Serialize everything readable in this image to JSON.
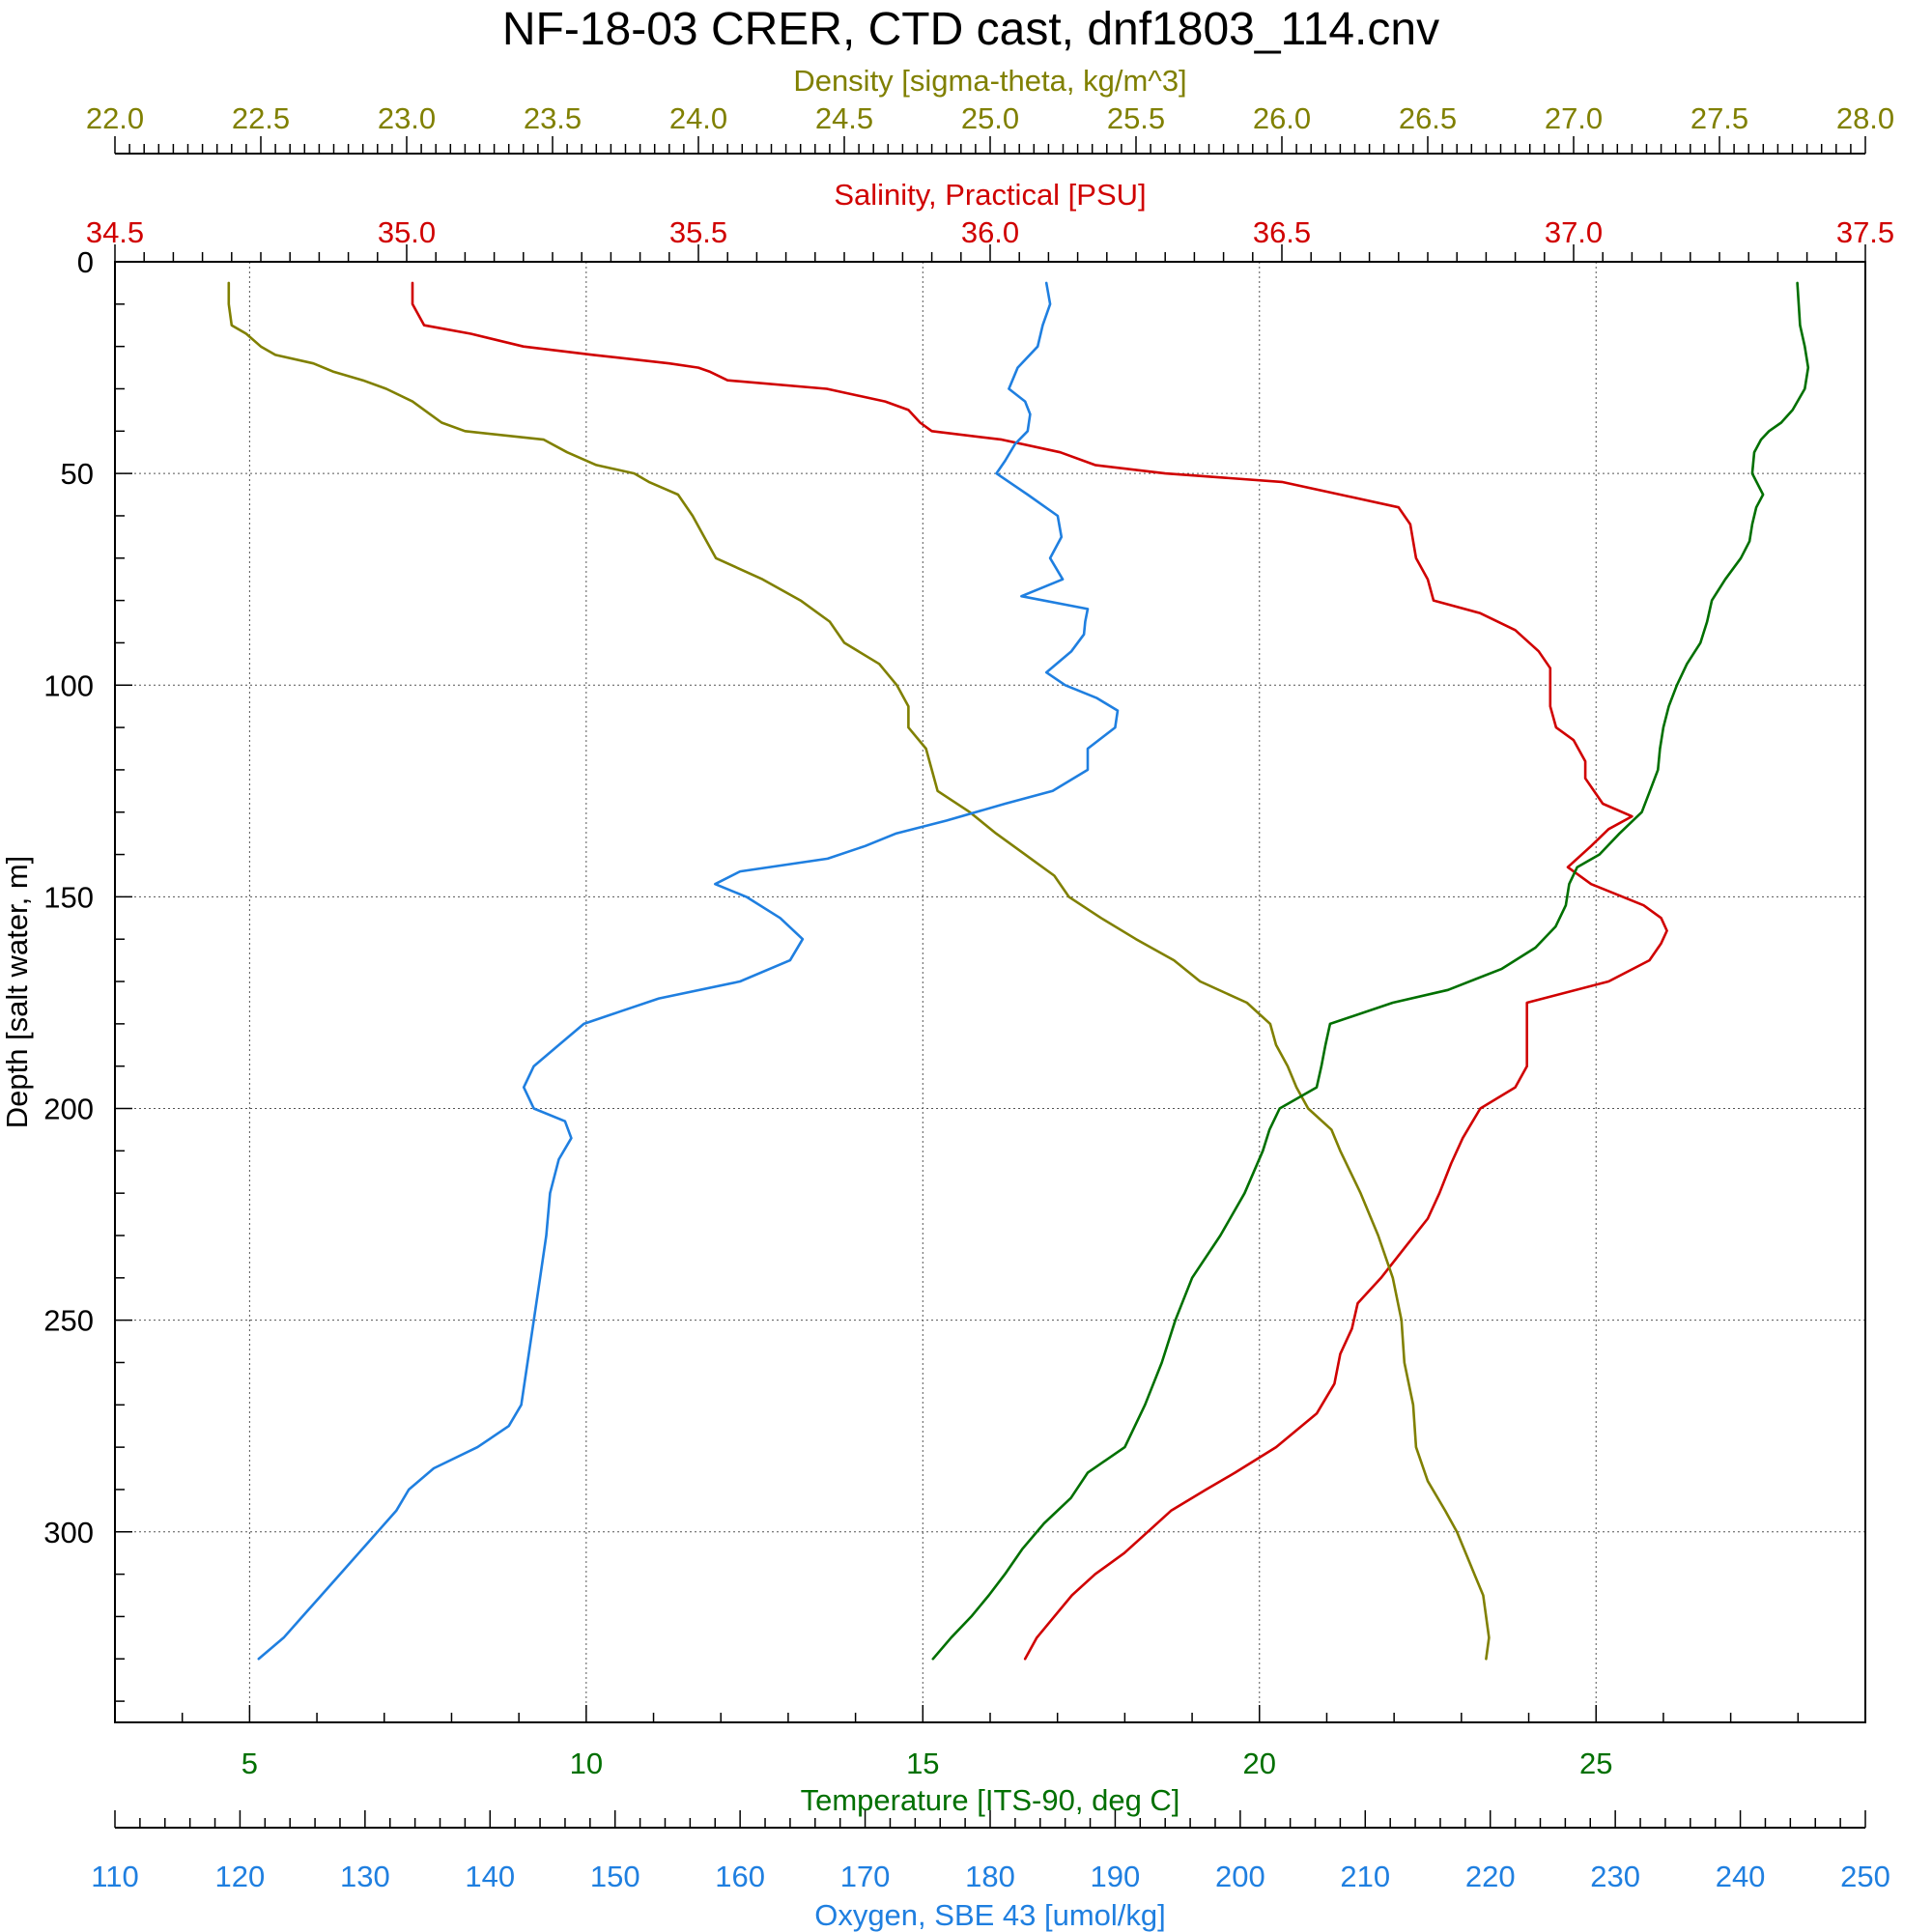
{
  "chart_data": {
    "type": "line",
    "title": "NF-18-03 CRER, CTD cast, dnf1803_114.cnv",
    "grid": true,
    "y_axis": {
      "label": "Depth [salt water, m]",
      "range": [
        0,
        345
      ],
      "inverted": true,
      "ticks": [
        0,
        50,
        100,
        150,
        200,
        250,
        300
      ],
      "tick_labels": [
        "0",
        "50",
        "100",
        "150",
        "200",
        "250",
        "300"
      ]
    },
    "x_axes": {
      "density": {
        "label": "Density [sigma-theta, kg/m^3]",
        "position": "top-outer",
        "color": "#808000",
        "range": [
          22.0,
          28.0
        ],
        "ticks": [
          22.0,
          22.5,
          23.0,
          23.5,
          24.0,
          24.5,
          25.0,
          25.5,
          26.0,
          26.5,
          27.0,
          27.5,
          28.0
        ],
        "tick_labels": [
          "22.0",
          "22.5",
          "23.0",
          "23.5",
          "24.0",
          "24.5",
          "25.0",
          "25.5",
          "26.0",
          "26.5",
          "27.0",
          "27.5",
          "28.0"
        ]
      },
      "salinity": {
        "label": "Salinity, Practical [PSU]",
        "position": "top-inner",
        "color": "#d00000",
        "range": [
          34.5,
          37.5
        ],
        "ticks": [
          34.5,
          35.0,
          35.5,
          36.0,
          36.5,
          37.0,
          37.5
        ],
        "tick_labels": [
          "34.5",
          "35.0",
          "35.5",
          "36.0",
          "36.5",
          "37.0",
          "37.5"
        ]
      },
      "temperature": {
        "label": "Temperature [ITS-90, deg C]",
        "position": "bottom-inner",
        "color": "#007000",
        "range": [
          3.0,
          29.0
        ],
        "ticks": [
          5,
          10,
          15,
          20,
          25
        ],
        "tick_labels": [
          "5",
          "10",
          "15",
          "20",
          "25"
        ]
      },
      "oxygen": {
        "label": "Oxygen, SBE 43 [umol/kg]",
        "position": "bottom-outer",
        "color": "#1f7fe0",
        "range": [
          110,
          250
        ],
        "ticks": [
          110,
          120,
          130,
          140,
          150,
          160,
          170,
          180,
          190,
          200,
          210,
          220,
          230,
          240,
          250
        ],
        "tick_labels": [
          "110",
          "120",
          "130",
          "140",
          "150",
          "160",
          "170",
          "180",
          "190",
          "200",
          "210",
          "220",
          "230",
          "240",
          "250"
        ]
      }
    },
    "series": [
      {
        "axis": "salinity",
        "color": "#d00000",
        "depth": [
          5,
          10,
          15,
          17,
          20,
          22,
          24,
          25,
          26,
          28,
          30,
          33,
          35,
          38,
          40,
          42,
          45,
          48,
          50,
          52,
          55,
          58,
          62,
          70,
          75,
          80,
          83,
          87,
          92,
          96,
          100,
          105,
          110,
          113,
          118,
          122,
          128,
          131,
          134,
          138,
          143,
          147,
          152,
          155,
          158,
          161,
          165,
          170,
          175,
          180,
          185,
          190,
          195,
          200,
          207,
          213,
          220,
          226,
          233,
          240,
          246,
          252,
          258,
          265,
          272,
          280,
          286,
          290,
          295,
          300,
          305,
          310,
          315,
          320,
          325,
          330
        ],
        "values": [
          35.01,
          35.01,
          35.03,
          35.11,
          35.2,
          35.32,
          35.45,
          35.5,
          35.52,
          35.55,
          35.72,
          35.82,
          35.86,
          35.88,
          35.9,
          36.02,
          36.12,
          36.18,
          36.3,
          36.5,
          36.6,
          36.7,
          36.72,
          36.73,
          36.75,
          36.76,
          36.84,
          36.9,
          36.94,
          36.96,
          36.96,
          36.96,
          36.97,
          37.0,
          37.02,
          37.02,
          37.05,
          37.1,
          37.06,
          37.03,
          36.99,
          37.03,
          37.12,
          37.15,
          37.16,
          37.15,
          37.13,
          37.06,
          36.92,
          36.92,
          36.92,
          36.92,
          36.9,
          36.84,
          36.81,
          36.79,
          36.77,
          36.75,
          36.71,
          36.67,
          36.63,
          36.62,
          36.6,
          36.59,
          36.56,
          36.49,
          36.42,
          36.37,
          36.31,
          36.27,
          36.23,
          36.18,
          36.14,
          36.11,
          36.08,
          36.06
        ]
      },
      {
        "axis": "density",
        "color": "#808000",
        "depth": [
          5,
          10,
          15,
          17,
          20,
          22,
          24,
          26,
          28,
          30,
          33,
          36,
          38,
          40,
          42,
          45,
          48,
          50,
          52,
          55,
          60,
          65,
          70,
          75,
          80,
          85,
          90,
          95,
          100,
          105,
          110,
          115,
          120,
          125,
          130,
          135,
          140,
          145,
          150,
          155,
          160,
          165,
          170,
          175,
          180,
          185,
          190,
          195,
          200,
          205,
          210,
          220,
          230,
          240,
          250,
          260,
          270,
          280,
          288,
          295,
          300,
          305,
          310,
          315,
          320,
          325,
          330
        ],
        "values": [
          22.39,
          22.39,
          22.4,
          22.45,
          22.5,
          22.55,
          22.68,
          22.75,
          22.85,
          22.93,
          23.02,
          23.08,
          23.12,
          23.2,
          23.47,
          23.55,
          23.65,
          23.78,
          23.83,
          23.93,
          23.98,
          24.02,
          24.06,
          24.22,
          24.35,
          24.45,
          24.5,
          24.62,
          24.68,
          24.72,
          24.72,
          24.78,
          24.8,
          24.82,
          24.93,
          25.02,
          25.12,
          25.22,
          25.27,
          25.38,
          25.5,
          25.63,
          25.72,
          25.88,
          25.96,
          25.98,
          26.02,
          26.05,
          26.09,
          26.17,
          26.2,
          26.27,
          26.33,
          26.38,
          26.41,
          26.42,
          26.45,
          26.46,
          26.5,
          26.56,
          26.6,
          26.63,
          26.66,
          26.69,
          26.7,
          26.71,
          26.7
        ]
      },
      {
        "axis": "temperature",
        "color": "#007000",
        "depth": [
          5,
          10,
          15,
          20,
          25,
          30,
          35,
          38,
          40,
          42,
          45,
          50,
          55,
          58,
          62,
          66,
          70,
          75,
          80,
          85,
          90,
          95,
          100,
          105,
          110,
          115,
          120,
          125,
          130,
          135,
          140,
          143,
          147,
          152,
          157,
          162,
          167,
          172,
          175,
          180,
          185,
          190,
          195,
          200,
          205,
          210,
          220,
          230,
          240,
          250,
          260,
          270,
          280,
          286,
          292,
          298,
          304,
          310,
          315,
          320,
          325,
          330
        ],
        "values": [
          27.99,
          28.01,
          28.03,
          28.1,
          28.15,
          28.1,
          27.92,
          27.75,
          27.57,
          27.45,
          27.35,
          27.32,
          27.48,
          27.38,
          27.32,
          27.28,
          27.15,
          26.92,
          26.72,
          26.65,
          26.55,
          26.35,
          26.2,
          26.08,
          26.0,
          25.95,
          25.92,
          25.8,
          25.68,
          25.35,
          25.05,
          24.72,
          24.6,
          24.55,
          24.4,
          24.1,
          23.6,
          22.8,
          21.98,
          21.05,
          20.98,
          20.92,
          20.85,
          20.3,
          20.15,
          20.05,
          19.78,
          19.42,
          19.0,
          18.75,
          18.55,
          18.3,
          18.0,
          17.45,
          17.2,
          16.8,
          16.48,
          16.22,
          15.98,
          15.72,
          15.42,
          15.15
        ]
      },
      {
        "axis": "oxygen",
        "color": "#1f7fe0",
        "depth": [
          5,
          10,
          15,
          20,
          25,
          30,
          33,
          36,
          40,
          43,
          47,
          50,
          55,
          60,
          65,
          70,
          75,
          79,
          82,
          85,
          88,
          92,
          97,
          100,
          103,
          106,
          110,
          115,
          120,
          125,
          128,
          132,
          135,
          138,
          141,
          144,
          147,
          150,
          155,
          160,
          165,
          170,
          174,
          177,
          180,
          185,
          190,
          195,
          200,
          203,
          207,
          212,
          220,
          230,
          240,
          250,
          260,
          270,
          275,
          280,
          285,
          290,
          295,
          300,
          305,
          310,
          315,
          320,
          325,
          330
        ],
        "values": [
          184.5,
          184.8,
          184.2,
          183.8,
          182.2,
          181.5,
          182.8,
          183.2,
          183.0,
          182.0,
          181.2,
          180.5,
          183.0,
          185.4,
          185.7,
          184.8,
          185.8,
          182.5,
          187.8,
          187.6,
          187.5,
          186.5,
          184.5,
          186.0,
          188.5,
          190.2,
          190.0,
          187.8,
          187.8,
          185.0,
          181.2,
          176.5,
          172.5,
          170.0,
          167.0,
          160.0,
          158.0,
          160.5,
          163.2,
          165.0,
          164.0,
          160.0,
          153.5,
          150.5,
          147.5,
          145.5,
          143.5,
          142.7,
          143.5,
          146.0,
          146.5,
          145.5,
          144.8,
          144.5,
          144.0,
          143.5,
          143.0,
          142.5,
          141.5,
          139.0,
          135.5,
          133.5,
          132.5,
          131.0,
          129.5,
          128.0,
          126.5,
          125.0,
          123.5,
          121.5
        ]
      }
    ]
  }
}
